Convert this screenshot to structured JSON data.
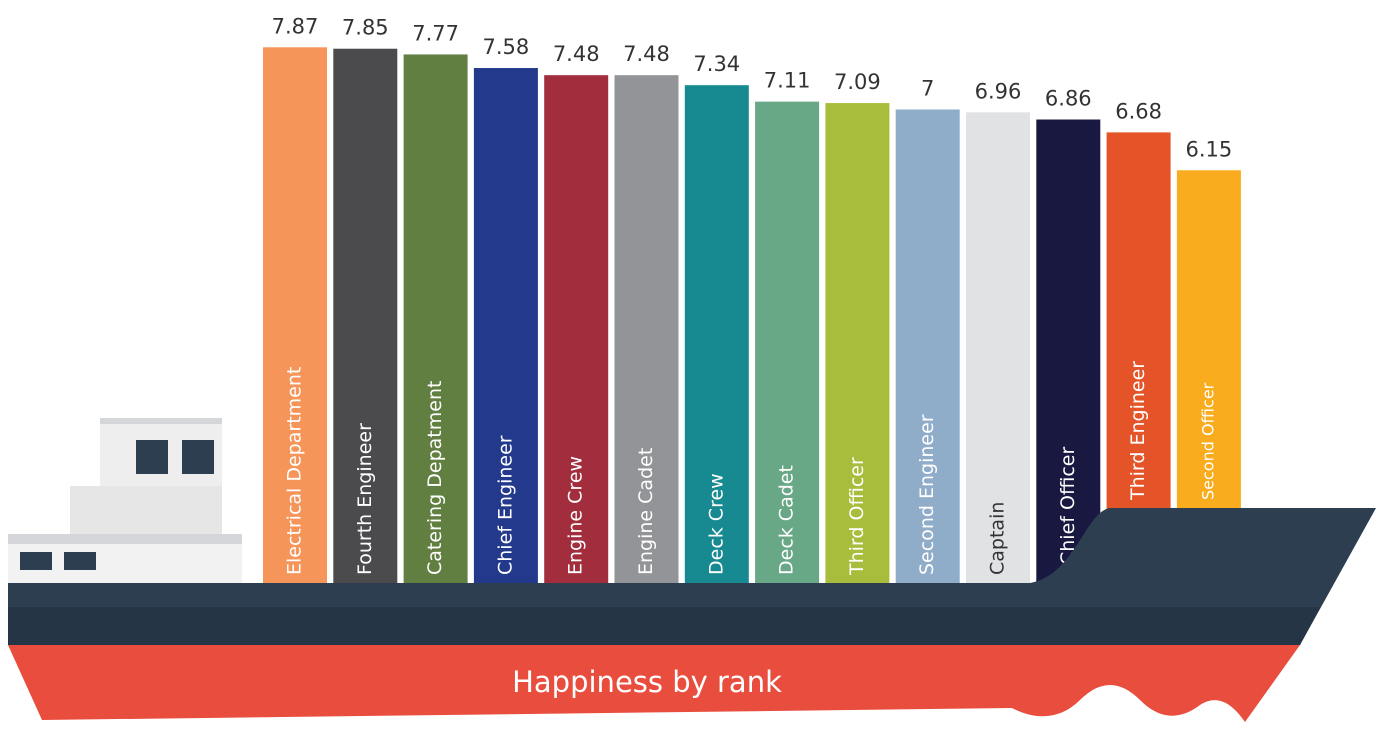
{
  "chart_data": {
    "type": "bar",
    "title": "Happiness by rank",
    "categories": [
      "Electrical Department",
      "Fourth Engineer",
      "Catering Depatment",
      "Chief Engineer",
      "Engine Crew",
      "Engine Cadet",
      "Deck Crew",
      "Deck Cadet",
      "Third Officer",
      "Second Engineer",
      "Captain",
      "Chief Officer",
      "Third Engineer",
      "Second Officer"
    ],
    "values": [
      7.87,
      7.85,
      7.77,
      7.58,
      7.48,
      7.48,
      7.34,
      7.11,
      7.09,
      7,
      6.96,
      6.86,
      6.68,
      6.15
    ],
    "colors": [
      "#f5955a",
      "#4b4a4c",
      "#627f42",
      "#233a8c",
      "#a12d3d",
      "#939497",
      "#178a91",
      "#68a887",
      "#a8bd3c",
      "#8facc8",
      "#e1e2e4",
      "#181840",
      "#e55428",
      "#f9ac1d"
    ]
  }
}
